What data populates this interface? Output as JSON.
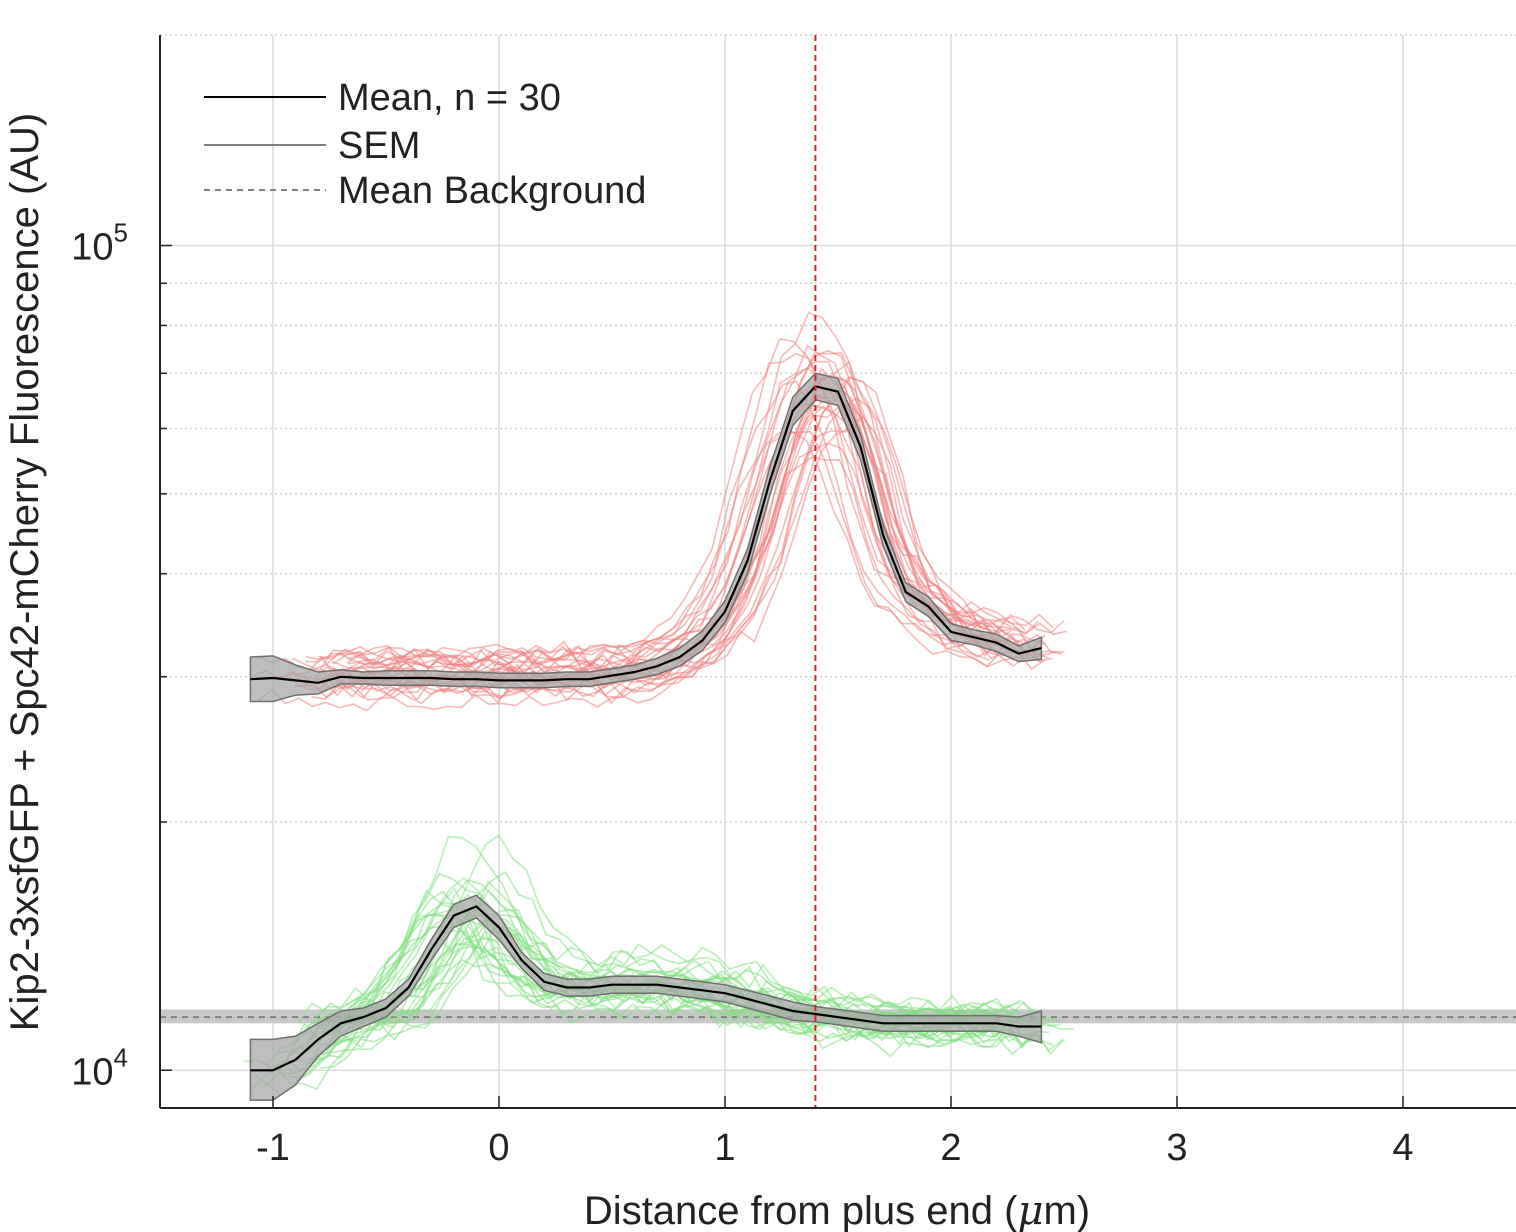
{
  "chart_data": {
    "type": "line",
    "xlabel_prefix": "Distance from plus end (",
    "xlabel_mu": "μ",
    "xlabel_suffix": "m)",
    "ylabel": "Kip2-3xsfGFP + Spc42-mCherry Fluorescence (AU)",
    "x_ticks": [
      "-1",
      "0",
      "1",
      "2",
      "3",
      "4"
    ],
    "y_ticks": [
      {
        "base": "10",
        "exp": "4"
      },
      {
        "base": "10",
        "exp": "5"
      }
    ],
    "xlim": [
      -1.5,
      4.5
    ],
    "ylim": [
      9000,
      180000
    ],
    "y_scale": "log",
    "grid": true,
    "minor_grid": "dotted",
    "legend": {
      "placement": "top-left",
      "entries": [
        {
          "label": "Mean, n = 30",
          "style": "solid",
          "color": "#000000"
        },
        {
          "label": "SEM",
          "style": "solid",
          "color": "#808080"
        },
        {
          "label": "Mean Background",
          "style": "dashed",
          "color": "#808080"
        }
      ]
    },
    "marker_line": {
      "x": 1.4,
      "color": "#dd2222",
      "style": "dashed"
    },
    "background": {
      "value": 11600,
      "band": [
        11400,
        11850
      ]
    },
    "series": [
      {
        "name": "Mean, n = 30",
        "color": "#000000",
        "x": [
          -1.1,
          -1.0,
          -0.9,
          -0.8,
          -0.7,
          -0.6,
          -0.5,
          -0.4,
          -0.3,
          -0.2,
          -0.1,
          0.0,
          0.1,
          0.2,
          0.3,
          0.4,
          0.5,
          0.6,
          0.7,
          0.8,
          0.9,
          1.0,
          1.1,
          1.2,
          1.3,
          1.4,
          1.5,
          1.6,
          1.7,
          1.8,
          1.9,
          2.0,
          2.1,
          2.2,
          2.3,
          2.4
        ],
        "y": [
          29800,
          29900,
          29700,
          29500,
          30000,
          29900,
          29900,
          29900,
          29900,
          29800,
          29800,
          29700,
          29700,
          29700,
          29800,
          29800,
          30100,
          30400,
          30900,
          31700,
          33200,
          36000,
          41500,
          52000,
          63000,
          67500,
          66500,
          57000,
          44500,
          38000,
          36500,
          34000,
          33500,
          33000,
          32000,
          32500
        ],
        "sem_lower": [
          28000,
          28000,
          28500,
          28600,
          29400,
          29400,
          29300,
          29300,
          29300,
          29200,
          29200,
          29100,
          29100,
          29100,
          29200,
          29200,
          29500,
          29800,
          30200,
          30900,
          32300,
          34900,
          40100,
          50000,
          60500,
          65000,
          64000,
          55000,
          43200,
          37000,
          35500,
          33200,
          32800,
          32200,
          31300,
          31500
        ],
        "sem_upper": [
          31700,
          31800,
          31000,
          30400,
          30600,
          30400,
          30500,
          30500,
          30500,
          30400,
          30400,
          30300,
          30300,
          30300,
          30400,
          30400,
          30700,
          31000,
          31600,
          32500,
          34100,
          37100,
          42900,
          54000,
          65500,
          70000,
          69000,
          59000,
          45800,
          39000,
          37500,
          34800,
          34200,
          33800,
          32700,
          33500
        ]
      },
      {
        "name": "",
        "color": "#000000",
        "x": [
          -1.1,
          -1.0,
          -0.9,
          -0.8,
          -0.7,
          -0.6,
          -0.5,
          -0.4,
          -0.3,
          -0.2,
          -0.1,
          0.0,
          0.1,
          0.2,
          0.3,
          0.4,
          0.5,
          0.6,
          0.7,
          0.8,
          0.9,
          1.0,
          1.1,
          1.2,
          1.3,
          1.4,
          1.5,
          1.6,
          1.7,
          1.8,
          1.9,
          2.0,
          2.1,
          2.2,
          2.3,
          2.4
        ],
        "y": [
          10000,
          10000,
          10300,
          10900,
          11400,
          11600,
          11900,
          12600,
          14000,
          15400,
          15800,
          14900,
          13600,
          12800,
          12600,
          12600,
          12700,
          12700,
          12700,
          12600,
          12500,
          12400,
          12200,
          12000,
          11800,
          11700,
          11600,
          11500,
          11400,
          11400,
          11400,
          11400,
          11400,
          11400,
          11300,
          11300
        ],
        "sem_lower": [
          9200,
          9200,
          9600,
          10400,
          11000,
          11300,
          11600,
          12300,
          13600,
          14900,
          15300,
          14400,
          13300,
          12500,
          12300,
          12300,
          12400,
          12400,
          12400,
          12300,
          12200,
          12100,
          11900,
          11700,
          11500,
          11450,
          11350,
          11250,
          11150,
          11150,
          11150,
          11150,
          11150,
          11150,
          11000,
          10800
        ],
        "sem_upper": [
          10900,
          10900,
          11000,
          11400,
          11800,
          11900,
          12200,
          12900,
          14400,
          15900,
          16300,
          15400,
          13900,
          13100,
          12900,
          12900,
          13000,
          13000,
          13000,
          12900,
          12800,
          12700,
          12500,
          12300,
          12100,
          11950,
          11850,
          11750,
          11650,
          11650,
          11650,
          11650,
          11650,
          11650,
          11600,
          11800
        ]
      }
    ],
    "individual_traces": {
      "count": 30,
      "mcherry_color": "#f08080",
      "gfp_color": "#7ee07e",
      "x": [
        -1.1,
        -1.0,
        -0.9,
        -0.8,
        -0.7,
        -0.6,
        -0.5,
        -0.4,
        -0.3,
        -0.2,
        -0.1,
        0.0,
        0.1,
        0.2,
        0.3,
        0.4,
        0.5,
        0.6,
        0.7,
        0.8,
        0.9,
        1.0,
        1.1,
        1.2,
        1.3,
        1.4,
        1.5,
        1.6,
        1.7,
        1.8,
        1.9,
        2.0,
        2.1,
        2.2,
        2.3,
        2.4,
        2.5
      ]
    }
  }
}
